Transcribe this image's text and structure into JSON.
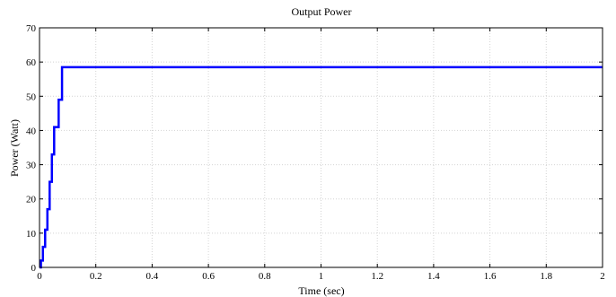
{
  "chart_data": {
    "type": "line",
    "title": "Output Power",
    "xlabel": "Time (sec)",
    "ylabel": "Power (Watt)",
    "xlim": [
      0,
      2
    ],
    "ylim": [
      0,
      70
    ],
    "xticks": [
      0,
      0.2,
      0.4,
      0.6,
      0.8,
      1,
      1.2,
      1.4,
      1.6,
      1.8,
      2
    ],
    "xtick_labels": [
      "0",
      "0.2",
      "0.4",
      "0.6",
      "0.8",
      "1",
      "1.2",
      "1.4",
      "1.6",
      "1.8",
      "2"
    ],
    "yticks": [
      0,
      10,
      20,
      30,
      40,
      50,
      60,
      70
    ],
    "ytick_labels": [
      "0",
      "10",
      "20",
      "30",
      "40",
      "50",
      "60",
      "70"
    ],
    "grid": true,
    "series": [
      {
        "color": "#0000ff",
        "x": [
          0,
          0.005,
          0.005,
          0.012,
          0.012,
          0.02,
          0.02,
          0.028,
          0.028,
          0.036,
          0.036,
          0.044,
          0.044,
          0.052,
          0.052,
          0.06,
          0.06,
          0.068,
          0.068,
          0.072,
          0.072,
          0.08,
          0.08,
          2.0
        ],
        "y": [
          0,
          0,
          2,
          2,
          6,
          6,
          11,
          11,
          17,
          17,
          25,
          25,
          33,
          33,
          41,
          41,
          41,
          41,
          49,
          49,
          49,
          49,
          58.5,
          58.5
        ]
      }
    ]
  }
}
